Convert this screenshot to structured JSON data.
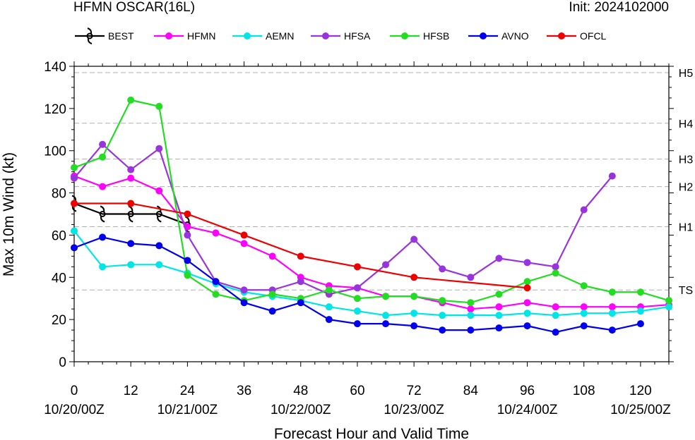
{
  "chart_data": {
    "type": "line",
    "title": "HFMN OSCAR(16L)",
    "init_label": "Init: 2024102000",
    "xlabel": "Forecast Hour and Valid Time",
    "ylabel": "Max 10m Wind (kt)",
    "xlim": [
      0,
      126
    ],
    "ylim": [
      0,
      140
    ],
    "grid": false,
    "legend_position": "top",
    "x_ticks": [
      0,
      12,
      24,
      36,
      48,
      60,
      72,
      84,
      96,
      108,
      120
    ],
    "x_tick_labels": [
      "0",
      "12",
      "24",
      "36",
      "48",
      "60",
      "72",
      "84",
      "96",
      "108",
      "120"
    ],
    "date_ticks": [
      0,
      24,
      48,
      72,
      96,
      120
    ],
    "date_tick_labels": [
      "10/20/00Z",
      "10/21/00Z",
      "10/22/00Z",
      "10/23/00Z",
      "10/24/00Z",
      "10/25/00Z"
    ],
    "y_ticks": [
      0,
      20,
      40,
      60,
      80,
      100,
      120,
      140
    ],
    "y_tick_labels": [
      "0",
      "20",
      "40",
      "60",
      "80",
      "100",
      "120",
      "140"
    ],
    "intensity_thresholds": [
      {
        "label": "TS",
        "value": 34
      },
      {
        "label": "H1",
        "value": 64
      },
      {
        "label": "H2",
        "value": 83
      },
      {
        "label": "H3",
        "value": 96
      },
      {
        "label": "H4",
        "value": 113
      },
      {
        "label": "H5",
        "value": 137
      }
    ],
    "series": [
      {
        "name": "BEST",
        "color": "#000000",
        "marker": "hurricane",
        "x": [
          0,
          6,
          12,
          18,
          24
        ],
        "values": [
          75,
          70,
          70,
          70,
          65
        ]
      },
      {
        "name": "HFMN",
        "color": "#ff00ff",
        "marker": "circle",
        "x": [
          0,
          6,
          12,
          18,
          24,
          30,
          36,
          42,
          48,
          54,
          60,
          66,
          72,
          78,
          84,
          90,
          96,
          102,
          108,
          114,
          120,
          126
        ],
        "values": [
          88,
          83,
          87,
          81,
          64,
          61,
          56,
          50,
          40,
          36,
          35,
          31,
          31,
          28,
          25,
          26,
          28,
          26,
          26,
          26,
          26,
          27
        ]
      },
      {
        "name": "AEMN",
        "color": "#00e5e5",
        "marker": "circle",
        "x": [
          0,
          6,
          12,
          18,
          24,
          30,
          36,
          42,
          48,
          54,
          60,
          66,
          72,
          78,
          84,
          90,
          96,
          102,
          108,
          114,
          120,
          126
        ],
        "values": [
          62,
          45,
          46,
          46,
          42,
          37,
          33,
          31,
          29,
          26,
          24,
          22,
          23,
          22,
          22,
          22,
          23,
          22,
          23,
          23,
          24,
          26
        ]
      },
      {
        "name": "HFSA",
        "color": "#9933dd",
        "marker": "circle",
        "x": [
          0,
          6,
          12,
          18,
          24,
          30,
          36,
          42,
          48,
          54,
          60,
          66,
          72,
          78,
          84,
          90,
          96,
          102,
          108,
          114
        ],
        "values": [
          87,
          103,
          91,
          101,
          60,
          38,
          34,
          34,
          38,
          32,
          35,
          46,
          58,
          44,
          40,
          49,
          47,
          45,
          72,
          88
        ]
      },
      {
        "name": "HFSB",
        "color": "#22dd22",
        "marker": "circle",
        "x": [
          0,
          6,
          12,
          18,
          24,
          30,
          36,
          42,
          48,
          54,
          60,
          66,
          72,
          78,
          84,
          90,
          96,
          102,
          108,
          114,
          120,
          126
        ],
        "values": [
          92,
          97,
          124,
          121,
          41,
          32,
          29,
          32,
          30,
          34,
          30,
          31,
          31,
          29,
          28,
          32,
          38,
          42,
          36,
          33,
          33,
          29
        ]
      },
      {
        "name": "AVNO",
        "color": "#0000ee",
        "marker": "circle",
        "x": [
          0,
          6,
          12,
          18,
          24,
          30,
          36,
          42,
          48,
          54,
          60,
          66,
          72,
          78,
          84,
          90,
          96,
          102,
          108,
          114,
          120
        ],
        "values": [
          54,
          59,
          56,
          55,
          48,
          38,
          28,
          24,
          28,
          20,
          18,
          18,
          17,
          15,
          15,
          16,
          17,
          14,
          17,
          15,
          18
        ]
      },
      {
        "name": "OFCL",
        "color": "#ee0000",
        "marker": "circle",
        "x": [
          0,
          12,
          24,
          36,
          48,
          60,
          72,
          96
        ],
        "values": [
          75,
          75,
          70,
          60,
          50,
          45,
          40,
          35
        ]
      }
    ]
  }
}
